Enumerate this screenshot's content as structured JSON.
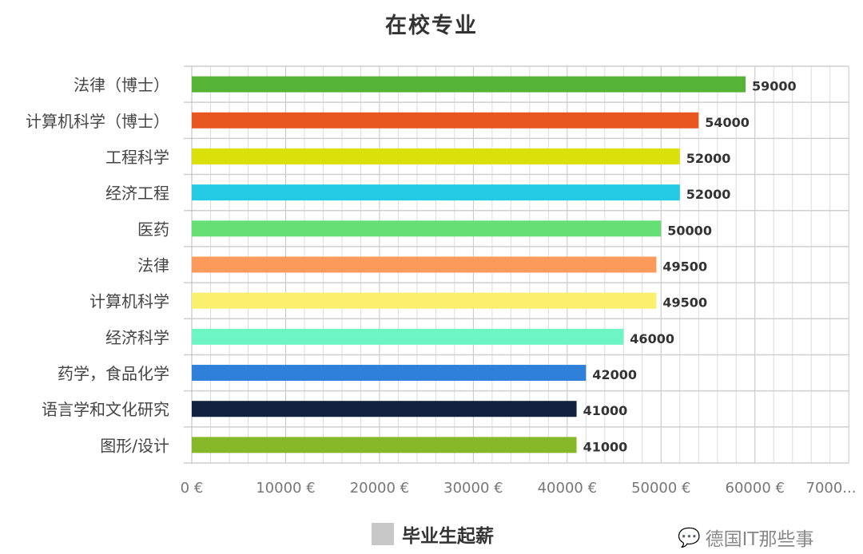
{
  "chart_data": {
    "type": "bar",
    "orientation": "horizontal",
    "title": "在校专业",
    "categories": [
      "法律（博士）",
      "计算机科学（博士）",
      "工程科学",
      "经济工程",
      "医药",
      "法律",
      "计算机科学",
      "经济科学",
      "药学，食品化学",
      "语言学和文化研究",
      "图形/设计"
    ],
    "values": [
      59000,
      54000,
      52000,
      52000,
      50000,
      49500,
      49500,
      46000,
      42000,
      41000,
      41000
    ],
    "colors": [
      "#55b335",
      "#e8571f",
      "#dce00a",
      "#22cbe3",
      "#66e075",
      "#fb9a5a",
      "#fbf06e",
      "#6ef5c5",
      "#2f80d8",
      "#10223f",
      "#86b82a"
    ],
    "xlim": [
      0,
      70000
    ],
    "xticks": [
      "0 €",
      "10000 €",
      "20000 €",
      "30000 €",
      "40000 €",
      "50000 €",
      "60000 €",
      "7000..."
    ],
    "grid": true,
    "legend": {
      "label": "毕业生起薪",
      "color": "#c8c8c8",
      "position": "bottom"
    }
  },
  "watermark": "德国IT那些事"
}
